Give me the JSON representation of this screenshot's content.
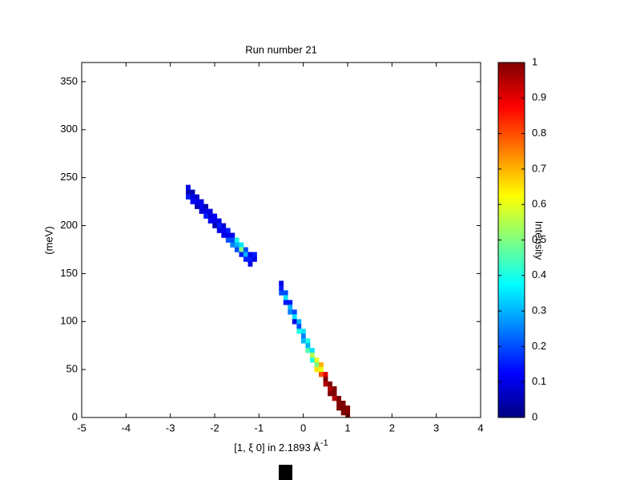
{
  "chart_data": {
    "type": "heatmap",
    "title": "Run number 21",
    "xlabel": "[1, ξ 0] in 2.1893 Å",
    "xlabel_exponent": "-1",
    "ylabel": "(meV)",
    "colorbar_label": "Intensity",
    "xlim": [
      -5,
      4
    ],
    "xticks": [
      -5,
      -4,
      -3,
      -2,
      -1,
      0,
      1,
      2,
      3,
      4
    ],
    "ylim": [
      0,
      370
    ],
    "yticks": [
      0,
      50,
      100,
      150,
      200,
      250,
      300,
      350
    ],
    "clim": [
      0,
      1
    ],
    "cticks": [
      0,
      0.1,
      0.2,
      0.3,
      0.4,
      0.5,
      0.6,
      0.7,
      0.8,
      0.9,
      1
    ],
    "colormap": "jet",
    "cells": [
      [
        -2.6,
        240,
        0.1
      ],
      [
        -2.6,
        235,
        0.05
      ],
      [
        -2.6,
        230,
        0.15
      ],
      [
        -2.5,
        235,
        0.05
      ],
      [
        -2.5,
        230,
        0.1
      ],
      [
        -2.5,
        225,
        0.12
      ],
      [
        -2.4,
        230,
        0.08
      ],
      [
        -2.4,
        225,
        0.1
      ],
      [
        -2.4,
        220,
        0.05
      ],
      [
        -2.3,
        225,
        0.1
      ],
      [
        -2.3,
        220,
        0.12
      ],
      [
        -2.3,
        215,
        0.08
      ],
      [
        -2.2,
        220,
        0.05
      ],
      [
        -2.2,
        215,
        0.1
      ],
      [
        -2.2,
        210,
        0.15
      ],
      [
        -2.1,
        215,
        0.1
      ],
      [
        -2.1,
        210,
        0.08
      ],
      [
        -2.1,
        205,
        0.12
      ],
      [
        -2.0,
        210,
        0.12
      ],
      [
        -2.0,
        205,
        0.1
      ],
      [
        -2.0,
        200,
        0.05
      ],
      [
        -1.9,
        205,
        0.1
      ],
      [
        -1.9,
        200,
        0.15
      ],
      [
        -1.9,
        195,
        0.1
      ],
      [
        -1.8,
        200,
        0.08
      ],
      [
        -1.8,
        195,
        0.12
      ],
      [
        -1.8,
        190,
        0.1
      ],
      [
        -1.7,
        195,
        0.15
      ],
      [
        -1.7,
        190,
        0.1
      ],
      [
        -1.7,
        185,
        0.2
      ],
      [
        -1.6,
        190,
        0.1
      ],
      [
        -1.6,
        185,
        0.2
      ],
      [
        -1.6,
        180,
        0.25
      ],
      [
        -1.5,
        185,
        0.4
      ],
      [
        -1.5,
        180,
        0.3
      ],
      [
        -1.5,
        175,
        0.2
      ],
      [
        -1.4,
        180,
        0.35
      ],
      [
        -1.4,
        175,
        0.5
      ],
      [
        -1.4,
        170,
        0.15
      ],
      [
        -1.3,
        175,
        0.2
      ],
      [
        -1.3,
        170,
        0.3
      ],
      [
        -1.3,
        165,
        0.15
      ],
      [
        -1.2,
        170,
        0.1
      ],
      [
        -1.2,
        165,
        0.15
      ],
      [
        -1.2,
        160,
        0.1
      ],
      [
        -1.1,
        170,
        0.15
      ],
      [
        -1.1,
        165,
        0.1
      ],
      [
        -0.5,
        140,
        0.1
      ],
      [
        -0.5,
        135,
        0.15
      ],
      [
        -0.5,
        130,
        0.2
      ],
      [
        -0.4,
        130,
        0.2
      ],
      [
        -0.4,
        125,
        0.35
      ],
      [
        -0.4,
        120,
        0.15
      ],
      [
        -0.3,
        120,
        0.15
      ],
      [
        -0.3,
        115,
        0.3
      ],
      [
        -0.3,
        110,
        0.25
      ],
      [
        -0.2,
        110,
        0.2
      ],
      [
        -0.2,
        105,
        0.35
      ],
      [
        -0.2,
        100,
        0.1
      ],
      [
        -0.1,
        100,
        0.3
      ],
      [
        -0.1,
        95,
        0.2
      ],
      [
        -0.1,
        90,
        0.4
      ],
      [
        0.0,
        90,
        0.35
      ],
      [
        0.0,
        85,
        0.25
      ],
      [
        0.0,
        80,
        0.3
      ],
      [
        0.1,
        80,
        0.4
      ],
      [
        0.1,
        75,
        0.3
      ],
      [
        0.1,
        70,
        0.45
      ],
      [
        0.2,
        70,
        0.35
      ],
      [
        0.2,
        65,
        0.55
      ],
      [
        0.2,
        60,
        0.4
      ],
      [
        0.3,
        60,
        0.6
      ],
      [
        0.3,
        55,
        0.5
      ],
      [
        0.3,
        50,
        0.65
      ],
      [
        0.4,
        55,
        0.7
      ],
      [
        0.4,
        50,
        0.6
      ],
      [
        0.4,
        45,
        0.8
      ],
      [
        0.5,
        45,
        0.9
      ],
      [
        0.5,
        40,
        1
      ],
      [
        0.5,
        35,
        0.95
      ],
      [
        0.6,
        35,
        1
      ],
      [
        0.6,
        30,
        0.95
      ],
      [
        0.6,
        25,
        1
      ],
      [
        0.7,
        30,
        1
      ],
      [
        0.7,
        25,
        1
      ],
      [
        0.7,
        20,
        0.95
      ],
      [
        0.8,
        20,
        1
      ],
      [
        0.8,
        15,
        1
      ],
      [
        0.8,
        10,
        1
      ],
      [
        0.9,
        15,
        1
      ],
      [
        0.9,
        10,
        1
      ],
      [
        0.9,
        5,
        1
      ],
      [
        1.0,
        10,
        1
      ],
      [
        1.0,
        5,
        1
      ],
      [
        1.0,
        0,
        1
      ]
    ]
  }
}
